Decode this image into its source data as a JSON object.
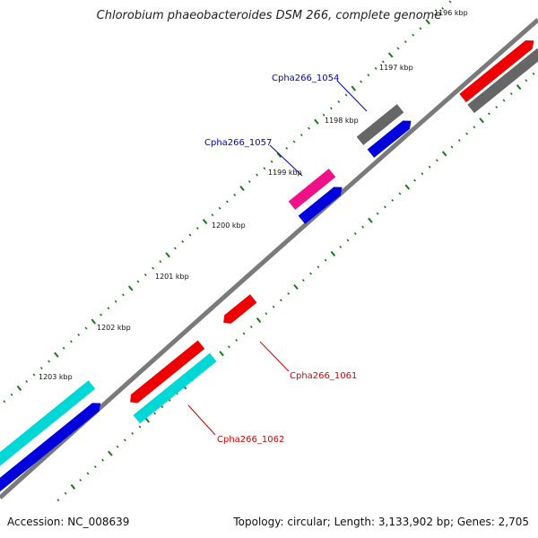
{
  "title": "Chlorobium phaeobacteroides DSM 266, complete genome",
  "footer": {
    "accession": "Accession: NC_008639",
    "stats": "Topology: circular; Length: 3,133,902 bp; Genes: 2,705"
  },
  "colors": {
    "backbone": "#7a7a7a",
    "tick": "#1a7a1a",
    "gene_red": "#ee0000",
    "gene_blue": "#0000dd",
    "gene_cyan": "#00d8d8",
    "gene_gray": "#666666",
    "gene_magenta": "#ee1188",
    "label_blue": "#0000cc",
    "label_red": "#dd0000"
  },
  "scale_labels": [
    "1196 kbp",
    "1197 kbp",
    "1198 kbp",
    "1199 kbp",
    "1200 kbp",
    "1201 kbp",
    "1202 kbp",
    "1203 kbp"
  ],
  "gene_labels": [
    {
      "id": "cpha-1054",
      "text": "Cpha266_1054",
      "color": "label_blue"
    },
    {
      "id": "cpha-1057",
      "text": "Cpha266_1057",
      "color": "label_blue"
    },
    {
      "id": "cpha-1061",
      "text": "Cpha266_1061",
      "color": "label_red"
    },
    {
      "id": "cpha-1062",
      "text": "Cpha266_1062",
      "color": "label_red"
    }
  ]
}
